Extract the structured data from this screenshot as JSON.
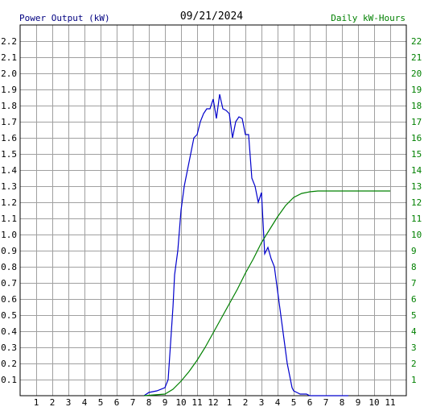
{
  "chart_data": {
    "type": "line",
    "title": "09/21/2024",
    "left_axis_label": "Power Output (kW)",
    "right_axis_label": "Daily kW-Hours",
    "left_ylim": [
      0,
      2.3
    ],
    "right_ylim": [
      0,
      23
    ],
    "left_ticks": [
      "0.1",
      "0.2",
      "0.3",
      "0.4",
      "0.5",
      "0.6",
      "0.7",
      "0.8",
      "0.9",
      "1.0",
      "1.1",
      "1.2",
      "1.3",
      "1.4",
      "1.5",
      "1.6",
      "1.7",
      "1.8",
      "1.9",
      "2.0",
      "2.1",
      "2.2"
    ],
    "right_ticks": [
      "1",
      "2",
      "3",
      "4",
      "5",
      "6",
      "7",
      "8",
      "9",
      "10",
      "11",
      "12",
      "13",
      "14",
      "15",
      "16",
      "17",
      "18",
      "19",
      "20",
      "21",
      "22"
    ],
    "x_ticks": [
      "1",
      "2",
      "3",
      "4",
      "5",
      "6",
      "7",
      "8",
      "9",
      "10",
      "11",
      "12",
      "1",
      "2",
      "3",
      "4",
      "5",
      "6",
      "7",
      "8",
      "9",
      "10",
      "11"
    ],
    "grid": true,
    "colors": {
      "power": "#0000cc",
      "energy": "#008000",
      "left_label": "#000080",
      "right_label": "#008000",
      "grid": "#a0a0a0"
    },
    "series": [
      {
        "axis": "left",
        "x": [
          7.7,
          8.0,
          8.5,
          9.0,
          9.2,
          9.4,
          9.5,
          9.6,
          9.8,
          10.0,
          10.2,
          10.4,
          10.6,
          10.8,
          11.0,
          11.2,
          11.4,
          11.6,
          11.8,
          12.0,
          12.2,
          12.4,
          12.6,
          12.8,
          13.0,
          13.2,
          13.4,
          13.6,
          13.8,
          14.0,
          14.2,
          14.4,
          14.6,
          14.8,
          15.0,
          15.2,
          15.4,
          15.6,
          15.8,
          16.0,
          16.2,
          16.4,
          16.6,
          16.8,
          16.9,
          17.0,
          17.2,
          17.4,
          17.6,
          17.8,
          18.0,
          18.2,
          18.4,
          18.6,
          18.8,
          19.0,
          19.2,
          19.4,
          19.6,
          20.0,
          20.4
        ],
        "y": [
          0.0,
          0.02,
          0.03,
          0.05,
          0.1,
          0.4,
          0.55,
          0.75,
          0.9,
          1.15,
          1.3,
          1.4,
          1.5,
          1.6,
          1.62,
          1.7,
          1.75,
          1.78,
          1.78,
          1.84,
          1.72,
          1.87,
          1.78,
          1.77,
          1.75,
          1.6,
          1.7,
          1.73,
          1.72,
          1.62,
          1.62,
          1.35,
          1.3,
          1.2,
          1.26,
          0.88,
          0.92,
          0.85,
          0.8,
          0.65,
          0.5,
          0.35,
          0.2,
          0.1,
          0.05,
          0.03,
          0.02,
          0.01,
          0.01,
          0.01,
          0.0,
          0.0,
          0.0,
          0.0,
          0.0,
          0.0,
          0.0,
          0.0,
          0.0,
          0.0,
          0.0
        ]
      },
      {
        "axis": "right",
        "x": [
          7.7,
          9.0,
          9.5,
          10.0,
          10.5,
          11.0,
          11.5,
          12.0,
          12.5,
          13.0,
          13.5,
          14.0,
          14.5,
          15.0,
          15.5,
          16.0,
          16.5,
          17.0,
          17.5,
          18.0,
          18.5,
          19.0,
          20.0,
          21.0,
          22.0,
          23.0
        ],
        "y": [
          0.0,
          0.1,
          0.4,
          0.9,
          1.5,
          2.2,
          3.0,
          3.9,
          4.8,
          5.7,
          6.6,
          7.6,
          8.5,
          9.5,
          10.3,
          11.1,
          11.8,
          12.3,
          12.55,
          12.65,
          12.7,
          12.7,
          12.7,
          12.7,
          12.7,
          12.7
        ]
      }
    ]
  }
}
